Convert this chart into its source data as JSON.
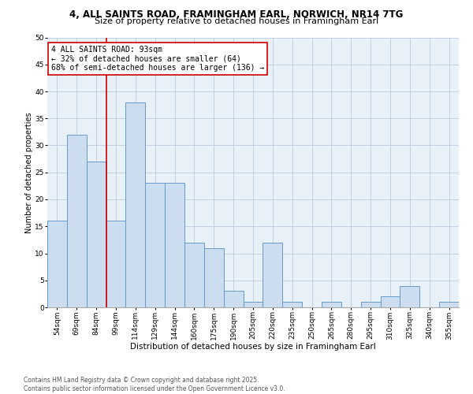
{
  "title_line1": "4, ALL SAINTS ROAD, FRAMINGHAM EARL, NORWICH, NR14 7TG",
  "title_line2": "Size of property relative to detached houses in Framingham Earl",
  "xlabel": "Distribution of detached houses by size in Framingham Earl",
  "ylabel": "Number of detached properties",
  "categories": [
    "54sqm",
    "69sqm",
    "84sqm",
    "99sqm",
    "114sqm",
    "129sqm",
    "144sqm",
    "160sqm",
    "175sqm",
    "190sqm",
    "205sqm",
    "220sqm",
    "235sqm",
    "250sqm",
    "265sqm",
    "280sqm",
    "295sqm",
    "310sqm",
    "325sqm",
    "340sqm",
    "355sqm"
  ],
  "values": [
    16,
    32,
    27,
    16,
    38,
    23,
    23,
    12,
    11,
    3,
    1,
    12,
    1,
    0,
    1,
    0,
    1,
    2,
    4,
    0,
    1
  ],
  "bar_color": "#ccddf0",
  "bar_edge_color": "#6699cc",
  "bar_edge_width": 0.7,
  "annotation_text": "4 ALL SAINTS ROAD: 93sqm\n← 32% of detached houses are smaller (64)\n68% of semi-detached houses are larger (136) →",
  "annotation_box_color": "#ffffff",
  "annotation_box_edge_color": "#cc0000",
  "vline_color": "#cc0000",
  "vline_x": 2.5,
  "grid_color": "#bbccdd",
  "background_color": "#e8f0f8",
  "ylim": [
    0,
    50
  ],
  "yticks": [
    0,
    5,
    10,
    15,
    20,
    25,
    30,
    35,
    40,
    45,
    50
  ],
  "footnote": "Contains HM Land Registry data © Crown copyright and database right 2025.\nContains public sector information licensed under the Open Government Licence v3.0.",
  "title_fontsize": 8.5,
  "subtitle_fontsize": 8,
  "tick_fontsize": 6.5,
  "label_fontsize": 7.5,
  "annot_fontsize": 7,
  "ylabel_fontsize": 7
}
